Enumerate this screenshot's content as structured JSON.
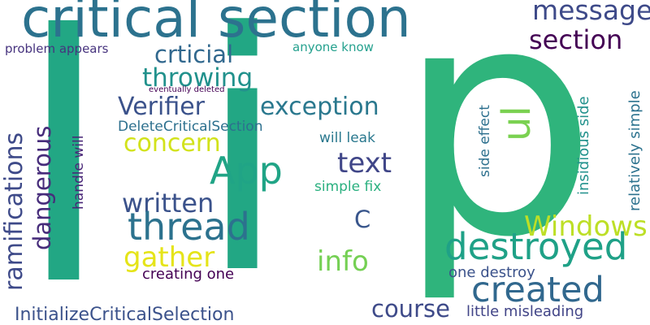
{
  "words": [
    {
      "key": "p",
      "text": "p",
      "color": "#2fb47c"
    },
    {
      "key": "l",
      "text": "l",
      "color": "#22a784"
    },
    {
      "key": "i",
      "text": "i",
      "color": "#22a784"
    },
    {
      "key": "critical_section",
      "text": "critical section",
      "color": "#2c728e"
    },
    {
      "key": "message",
      "text": "message",
      "color": "#3e4a89"
    },
    {
      "key": "section",
      "text": "section",
      "color": "#440154"
    },
    {
      "key": "crticial",
      "text": "crticial",
      "color": "#31688e"
    },
    {
      "key": "problem_appears",
      "text": "problem appears",
      "color": "#46337e"
    },
    {
      "key": "anyone_know",
      "text": "anyone know",
      "color": "#25a18e"
    },
    {
      "key": "throwing",
      "text": "throwing",
      "color": "#21918c"
    },
    {
      "key": "eventually_deleted",
      "text": "eventually deleted",
      "color": "#440154"
    },
    {
      "key": "verifier",
      "text": "Verifier",
      "color": "#3b528b"
    },
    {
      "key": "exception",
      "text": "exception",
      "color": "#2a788e"
    },
    {
      "key": "ul",
      "text": "ul",
      "color": "#7ad151"
    },
    {
      "key": "deletecriticalsection",
      "text": "DeleteCriticalSection",
      "color": "#2d708e"
    },
    {
      "key": "concern",
      "text": "concern",
      "color": "#d2e21b"
    },
    {
      "key": "will_leak",
      "text": "will leak",
      "color": "#2a788e"
    },
    {
      "key": "app",
      "text": "App",
      "color": "#20a486"
    },
    {
      "key": "text",
      "text": "text",
      "color": "#404688"
    },
    {
      "key": "written",
      "text": "written",
      "color": "#3b528b"
    },
    {
      "key": "simple_fix",
      "text": "simple fix",
      "color": "#2ab07f"
    },
    {
      "key": "thread",
      "text": "thread",
      "color": "#2c728e"
    },
    {
      "key": "c",
      "text": "C",
      "color": "#39568c"
    },
    {
      "key": "windows",
      "text": "Windows",
      "color": "#bddf26"
    },
    {
      "key": "destroyed",
      "text": "destroyed",
      "color": "#1fa187"
    },
    {
      "key": "gather",
      "text": "gather",
      "color": "#e5e419"
    },
    {
      "key": "info",
      "text": "info",
      "color": "#75d054"
    },
    {
      "key": "creating_one",
      "text": "creating one",
      "color": "#440154"
    },
    {
      "key": "one_destroy",
      "text": "one destroy",
      "color": "#3b528b"
    },
    {
      "key": "created",
      "text": "created",
      "color": "#31688e"
    },
    {
      "key": "course",
      "text": "course",
      "color": "#3e4a89"
    },
    {
      "key": "little_misleading",
      "text": "little misleading",
      "color": "#414487"
    },
    {
      "key": "initializecriticalselection",
      "text": "InitializeCriticalSelection",
      "color": "#3b528b"
    },
    {
      "key": "ramifications",
      "text": "ramifications",
      "color": "#3e4a89"
    },
    {
      "key": "dangerous",
      "text": "dangerous",
      "color": "#472d7b"
    },
    {
      "key": "handle_will",
      "text": "handle will",
      "color": "#482677"
    },
    {
      "key": "side_effect",
      "text": "side effect",
      "color": "#2d708e"
    },
    {
      "key": "insidious_side",
      "text": "insidious side",
      "color": "#21918c"
    },
    {
      "key": "relatively_simple",
      "text": "relatively simple",
      "color": "#2c728e"
    }
  ]
}
